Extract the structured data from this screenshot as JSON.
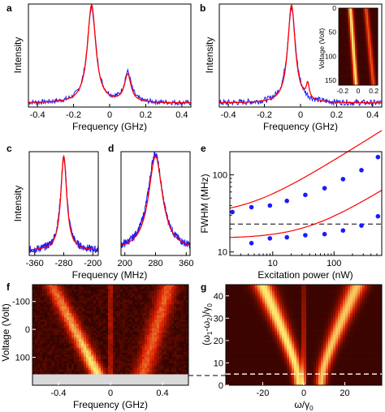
{
  "colors": {
    "blue": "#1a1aff",
    "red": "#ff0000",
    "heat_low": "#1a0000",
    "heat_mid": "#cc2a00",
    "heat_high": "#ffe680",
    "gray_band": "#d9d9d9"
  },
  "chart_data": [
    {
      "panel": "a",
      "type": "line",
      "xlabel": "Frequency (GHz)",
      "ylabel": "Intensity",
      "xlim": [
        -0.45,
        0.45
      ],
      "xticks": [
        "-0.4",
        "-0.2",
        "0",
        "0.2",
        "0.4"
      ],
      "xtick_values": [
        -0.4,
        -0.2,
        0,
        0.2,
        0.4
      ],
      "ylim": [
        0,
        1.05
      ],
      "series": [
        {
          "color": "red",
          "peaks": [
            {
              "x0": -0.1,
              "w": 0.028,
              "a": 1.0
            },
            {
              "x0": 0.1,
              "w": 0.022,
              "a": 0.28
            }
          ],
          "baseline": 0.04
        },
        {
          "color": "blue",
          "peaks": [
            {
              "x0": -0.1,
              "w": 0.03,
              "a": 0.97
            },
            {
              "x0": 0.1,
              "w": 0.024,
              "a": 0.3
            }
          ],
          "baseline": 0.04,
          "noise": 0.025
        }
      ]
    },
    {
      "panel": "b",
      "type": "line",
      "xlabel": "Frequency (GHz)",
      "ylabel": "Intensity",
      "xlim": [
        -0.45,
        0.45
      ],
      "xticks": [
        "-0.4",
        "-0.2",
        "0",
        "0.2",
        "0.4"
      ],
      "xtick_values": [
        -0.4,
        -0.2,
        0,
        0.2,
        0.4
      ],
      "ylim": [
        0,
        1.05
      ],
      "series": [
        {
          "color": "red",
          "peaks": [
            {
              "x0": -0.05,
              "w": 0.025,
              "a": 1.0
            },
            {
              "x0": 0.04,
              "w": 0.01,
              "a": 0.15
            }
          ],
          "baseline": 0.04
        },
        {
          "color": "blue",
          "peaks": [
            {
              "x0": -0.05,
              "w": 0.028,
              "a": 0.97
            }
          ],
          "baseline": 0.04,
          "noise": 0.03
        }
      ],
      "inset": {
        "type": "heatmap",
        "ylabel": "Voltage (Volt)",
        "xticks": [
          "-0.2",
          "0",
          "0.2"
        ],
        "xtick_values": [
          -0.2,
          0,
          0.2
        ],
        "yticks": [
          "0",
          "50",
          "100",
          "150"
        ],
        "ytick_values": [
          0,
          50,
          100,
          150
        ],
        "xlim": [
          -0.25,
          0.25
        ],
        "ylim": [
          0,
          160
        ]
      }
    },
    {
      "panel": "c",
      "type": "line",
      "xlabel": "",
      "ylabel": "Intensity",
      "xlim": [
        -375,
        -185
      ],
      "xticks": [
        "-360",
        "-280",
        "-200"
      ],
      "xtick_values": [
        -360,
        -280,
        -200
      ],
      "ylim": [
        0,
        1.1
      ],
      "series": [
        {
          "color": "red",
          "peaks": [
            {
              "x0": -280,
              "w": 10,
              "a": 1.0
            }
          ],
          "baseline": 0.05
        },
        {
          "color": "blue",
          "peaks": [
            {
              "x0": -280,
              "w": 11,
              "a": 0.98
            }
          ],
          "baseline": 0.05,
          "noise": 0.04
        }
      ]
    },
    {
      "panel": "d",
      "type": "line",
      "xlabel": "Frequency (MHz)",
      "ylabel": "",
      "xlim": [
        190,
        370
      ],
      "xticks": [
        "200",
        "280",
        "360"
      ],
      "xtick_values": [
        200,
        280,
        360
      ],
      "ylim": [
        0,
        1.1
      ],
      "series": [
        {
          "color": "red",
          "peaks": [
            {
              "x0": 280,
              "w": 22,
              "a": 1.0
            }
          ],
          "baseline": 0.05
        },
        {
          "color": "blue",
          "peaks": [
            {
              "x0": 279,
              "w": 23,
              "a": 1.03
            }
          ],
          "baseline": 0.05,
          "noise": 0.04
        }
      ]
    },
    {
      "panel": "e",
      "type": "scatter",
      "xlabel": "Excitation power (nW)",
      "ylabel": "FWHM (MHz)",
      "xscale": "log",
      "yscale": "log",
      "xlim": [
        2,
        600
      ],
      "ylim": [
        9,
        200
      ],
      "xticks": [
        "10",
        "100"
      ],
      "xtick_values": [
        10,
        100
      ],
      "yticks": [
        "10",
        "100"
      ],
      "ytick_values": [
        10,
        100
      ],
      "dashed_line_y": 23,
      "series": [
        {
          "color": "blue",
          "x": [
            2.2,
            4.5,
            9,
            17,
            34,
            70,
            140,
            280,
            520
          ],
          "y": [
            33,
            38,
            40,
            46,
            55,
            67,
            88,
            115,
            170
          ]
        },
        {
          "color": "blue",
          "x": [
            4.5,
            9,
            17,
            34,
            70,
            140,
            280,
            520
          ],
          "y": [
            13,
            15,
            15.5,
            16.5,
            17,
            19,
            22,
            29
          ]
        }
      ],
      "fits": [
        {
          "color": "red",
          "a": 30,
          "b": 0.26
        },
        {
          "color": "red",
          "a": 15,
          "b": 0.028
        }
      ]
    },
    {
      "panel": "f",
      "type": "heatmap",
      "xlabel": "Frequency (GHz)",
      "ylabel": "Voltage (Volt)",
      "xlim": [
        -0.6,
        0.6
      ],
      "ylim": [
        -160,
        200
      ],
      "xticks": [
        "-0.4",
        "0",
        "0.4"
      ],
      "xtick_values": [
        -0.4,
        0,
        0.4
      ],
      "yticks": [
        "-100",
        "0",
        "100"
      ],
      "ytick_values": [
        -100,
        0,
        100
      ]
    },
    {
      "panel": "g",
      "type": "heatmap",
      "xlabel": "ω/γ",
      "xlabel_sub": "0",
      "ylabel": "(ω",
      "ylabel_parts": [
        "(ω",
        "1",
        "-ω",
        "2",
        ")/γ",
        "0"
      ],
      "xlim": [
        -38,
        38
      ],
      "ylim": [
        0,
        45
      ],
      "xticks": [
        "-20",
        "0",
        "20"
      ],
      "xtick_values": [
        -20,
        0,
        20
      ],
      "yticks": [
        "0",
        "10",
        "20",
        "30",
        "40"
      ],
      "ytick_values": [
        0,
        10,
        20,
        30,
        40
      ],
      "dashed_line_y": 5
    }
  ],
  "panel_labels": [
    "a",
    "b",
    "c",
    "d",
    "e",
    "f",
    "g"
  ]
}
